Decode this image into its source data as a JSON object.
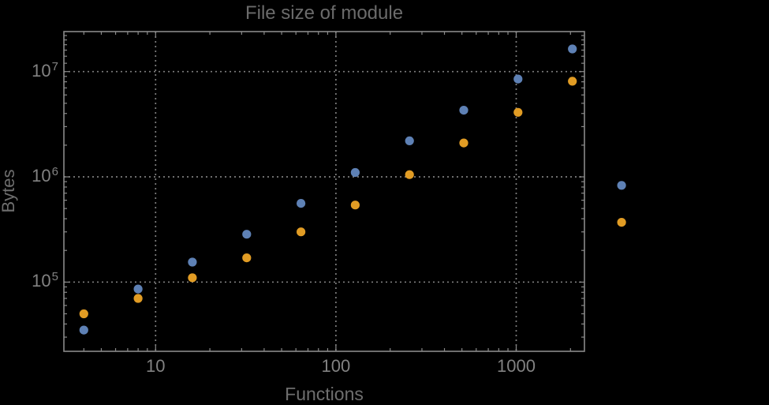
{
  "chart": {
    "colors": {
      "background": "#000000",
      "frame": "#8a8a8a",
      "grid": "#7d7d7d",
      "tick_label": "#828282",
      "title": "#6b6b6b",
      "axis_label": "#6e6e6e"
    }
  },
  "chart_data": {
    "type": "scatter",
    "title": "File size of module",
    "xlabel": "Functions",
    "ylabel": "Bytes",
    "x_scale": "log",
    "y_scale": "log",
    "xlim": [
      3.1,
      2390
    ],
    "ylim": [
      22000,
      24000000
    ],
    "grid": "dotted-major",
    "legend": "none",
    "x_major_ticks": [
      10,
      100,
      1000
    ],
    "x_major_labels": [
      "10",
      "100",
      "1000"
    ],
    "x_minor_ticks": [
      4,
      5,
      6,
      7,
      8,
      9,
      20,
      30,
      40,
      50,
      60,
      70,
      80,
      90,
      200,
      300,
      400,
      500,
      600,
      700,
      800,
      900,
      2000
    ],
    "y_major_ticks": [
      100000,
      1000000,
      10000000
    ],
    "y_major_labels": [
      {
        "base": "10",
        "exp": "5"
      },
      {
        "base": "10",
        "exp": "6"
      },
      {
        "base": "10",
        "exp": "7"
      }
    ],
    "y_minor_ticks": [
      30000,
      40000,
      50000,
      60000,
      70000,
      80000,
      90000,
      200000,
      300000,
      400000,
      500000,
      600000,
      700000,
      800000,
      900000,
      2000000,
      3000000,
      4000000,
      5000000,
      6000000,
      7000000,
      8000000,
      9000000,
      12000000,
      14000000,
      16000000,
      18000000,
      20000000,
      22000000
    ],
    "series": [
      {
        "name": "blue-series",
        "color": "#5E81B5",
        "marker": "circle",
        "points": [
          [
            4,
            35000
          ],
          [
            8,
            86000
          ],
          [
            16,
            155000
          ],
          [
            32,
            285000
          ],
          [
            64,
            560000
          ],
          [
            128,
            1100000
          ],
          [
            256,
            2200000
          ],
          [
            512,
            4300000
          ],
          [
            1024,
            8500000
          ],
          [
            2048,
            16400000
          ],
          [
            3840,
            830000
          ]
        ]
      },
      {
        "name": "orange-series",
        "color": "#E19C24",
        "marker": "circle",
        "points": [
          [
            4,
            50000
          ],
          [
            8,
            70000
          ],
          [
            16,
            110000
          ],
          [
            32,
            170000
          ],
          [
            64,
            300000
          ],
          [
            128,
            540000
          ],
          [
            256,
            1050000
          ],
          [
            512,
            2100000
          ],
          [
            1024,
            4100000
          ],
          [
            2048,
            8100000
          ],
          [
            3840,
            370000
          ]
        ]
      }
    ]
  }
}
